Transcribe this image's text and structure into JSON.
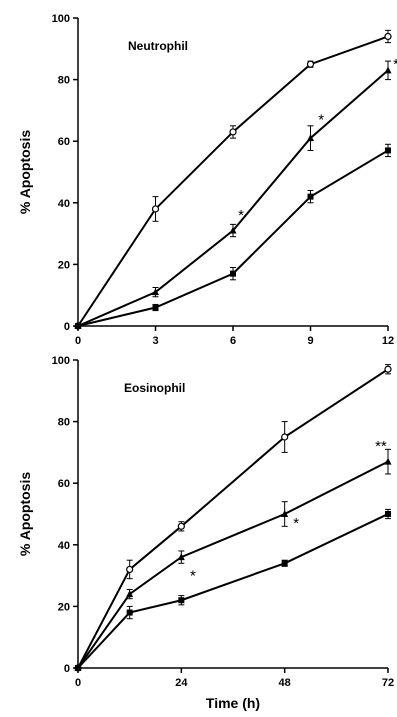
{
  "chart_data": [
    {
      "type": "line",
      "title": "Neutrophil",
      "xlabel": "",
      "ylabel": "% Apoptosis",
      "xlim": [
        0,
        12
      ],
      "ylim": [
        0,
        100
      ],
      "xticks": [
        "0",
        "3",
        "6",
        "9",
        "12"
      ],
      "yticks": [
        "0",
        "20",
        "40",
        "60",
        "80",
        "100"
      ],
      "x": [
        0,
        3,
        6,
        9,
        12
      ],
      "series": [
        {
          "marker": "open-circle",
          "values": [
            0,
            38,
            63,
            85,
            94
          ],
          "errors": [
            0,
            4,
            2,
            1,
            2
          ]
        },
        {
          "marker": "triangle",
          "values": [
            0,
            11,
            31,
            61,
            83
          ],
          "errors": [
            0,
            1.5,
            2,
            4,
            3
          ]
        },
        {
          "marker": "square",
          "values": [
            0,
            6,
            17,
            42,
            57
          ],
          "errors": [
            0,
            1,
            2,
            2,
            2
          ]
        }
      ],
      "annotations": [
        {
          "text": "*",
          "x": 6.2,
          "y": 36
        },
        {
          "text": "*",
          "x": 9.3,
          "y": 67
        },
        {
          "text": "**",
          "x": 12.2,
          "y": 85
        }
      ]
    },
    {
      "type": "line",
      "title": "Eosinophil",
      "xlabel": "Time (h)",
      "ylabel": "% Apoptosis",
      "xlim": [
        0,
        72
      ],
      "ylim": [
        0,
        100
      ],
      "xticks": [
        "0",
        "24",
        "48",
        "72"
      ],
      "yticks": [
        "0",
        "20",
        "40",
        "60",
        "80",
        "100"
      ],
      "x": [
        0,
        12,
        24,
        48,
        72
      ],
      "series": [
        {
          "marker": "open-circle",
          "values": [
            0,
            32,
            46,
            75,
            97
          ],
          "errors": [
            0,
            3,
            1.5,
            5,
            1.5
          ]
        },
        {
          "marker": "triangle",
          "values": [
            0,
            24,
            36,
            50,
            67
          ],
          "errors": [
            0,
            1.5,
            2,
            4,
            4
          ]
        },
        {
          "marker": "square",
          "values": [
            0,
            18,
            22,
            34,
            50
          ],
          "errors": [
            0,
            2,
            1.5,
            1,
            1.5
          ]
        }
      ],
      "annotations": [
        {
          "text": "*",
          "x": 26,
          "y": 30
        },
        {
          "text": "*",
          "x": 50,
          "y": 47
        },
        {
          "text": "**",
          "x": 69,
          "y": 72
        }
      ]
    }
  ]
}
